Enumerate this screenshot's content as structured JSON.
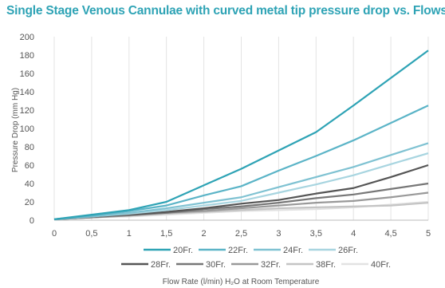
{
  "chart_data": {
    "type": "line",
    "title": "Single Stage Venous Cannulae with curved metal tip pressure drop vs. Flows",
    "xlabel": "Flow Rate (l/min) H₂O at Room Temperature",
    "ylabel": "Pressure Drop (mm Hg)",
    "xlim": [
      0,
      5
    ],
    "ylim": [
      0,
      200
    ],
    "xticks": [
      "0",
      "0,5",
      "1",
      "1,5",
      "2",
      "2,5",
      "3",
      "3,5",
      "4",
      "4,5",
      "5"
    ],
    "yticks": [
      "0",
      "20",
      "40",
      "60",
      "80",
      "100",
      "120",
      "140",
      "160",
      "180",
      "200"
    ],
    "grid": "vertical",
    "legend_position": "bottom",
    "x": [
      0,
      0.5,
      1,
      1.5,
      2,
      2.5,
      3,
      3.5,
      4,
      4.5,
      5
    ],
    "series": [
      {
        "name": "20Fr.",
        "color": "#2ea3b5",
        "values": [
          1,
          6,
          11,
          20,
          38,
          56,
          76,
          96,
          125,
          155,
          185
        ]
      },
      {
        "name": "22Fr.",
        "color": "#5bb4c7",
        "values": [
          1,
          5,
          10,
          16,
          27,
          37,
          54,
          70,
          87,
          106,
          125
        ]
      },
      {
        "name": "24Fr.",
        "color": "#7fc2d2",
        "values": [
          1,
          4,
          8,
          13,
          19,
          25,
          36,
          47,
          58,
          71,
          84
        ]
      },
      {
        "name": "26Fr.",
        "color": "#a8d5e0",
        "values": [
          1,
          4,
          7,
          11,
          16,
          21,
          30,
          39,
          49,
          61,
          73
        ]
      },
      {
        "name": "28Fr.",
        "color": "#555555",
        "values": [
          1,
          4,
          6,
          9,
          13,
          18,
          22,
          29,
          35,
          47,
          60
        ]
      },
      {
        "name": "30Fr.",
        "color": "#777777",
        "values": [
          1,
          3,
          6,
          8,
          12,
          15,
          19,
          24,
          28,
          34,
          40
        ]
      },
      {
        "name": "32Fr.",
        "color": "#999999",
        "values": [
          1,
          3,
          5,
          8,
          10,
          13,
          16,
          19,
          21,
          25,
          30
        ]
      },
      {
        "name": "38Fr.",
        "color": "#c4c4c4",
        "values": [
          1,
          3,
          5,
          7,
          9,
          11,
          13,
          14,
          15,
          16,
          19
        ]
      },
      {
        "name": "40Fr.",
        "color": "#e2e2e2",
        "values": [
          1,
          3,
          4,
          6,
          8,
          10,
          11,
          12,
          14,
          17,
          20
        ]
      }
    ]
  }
}
